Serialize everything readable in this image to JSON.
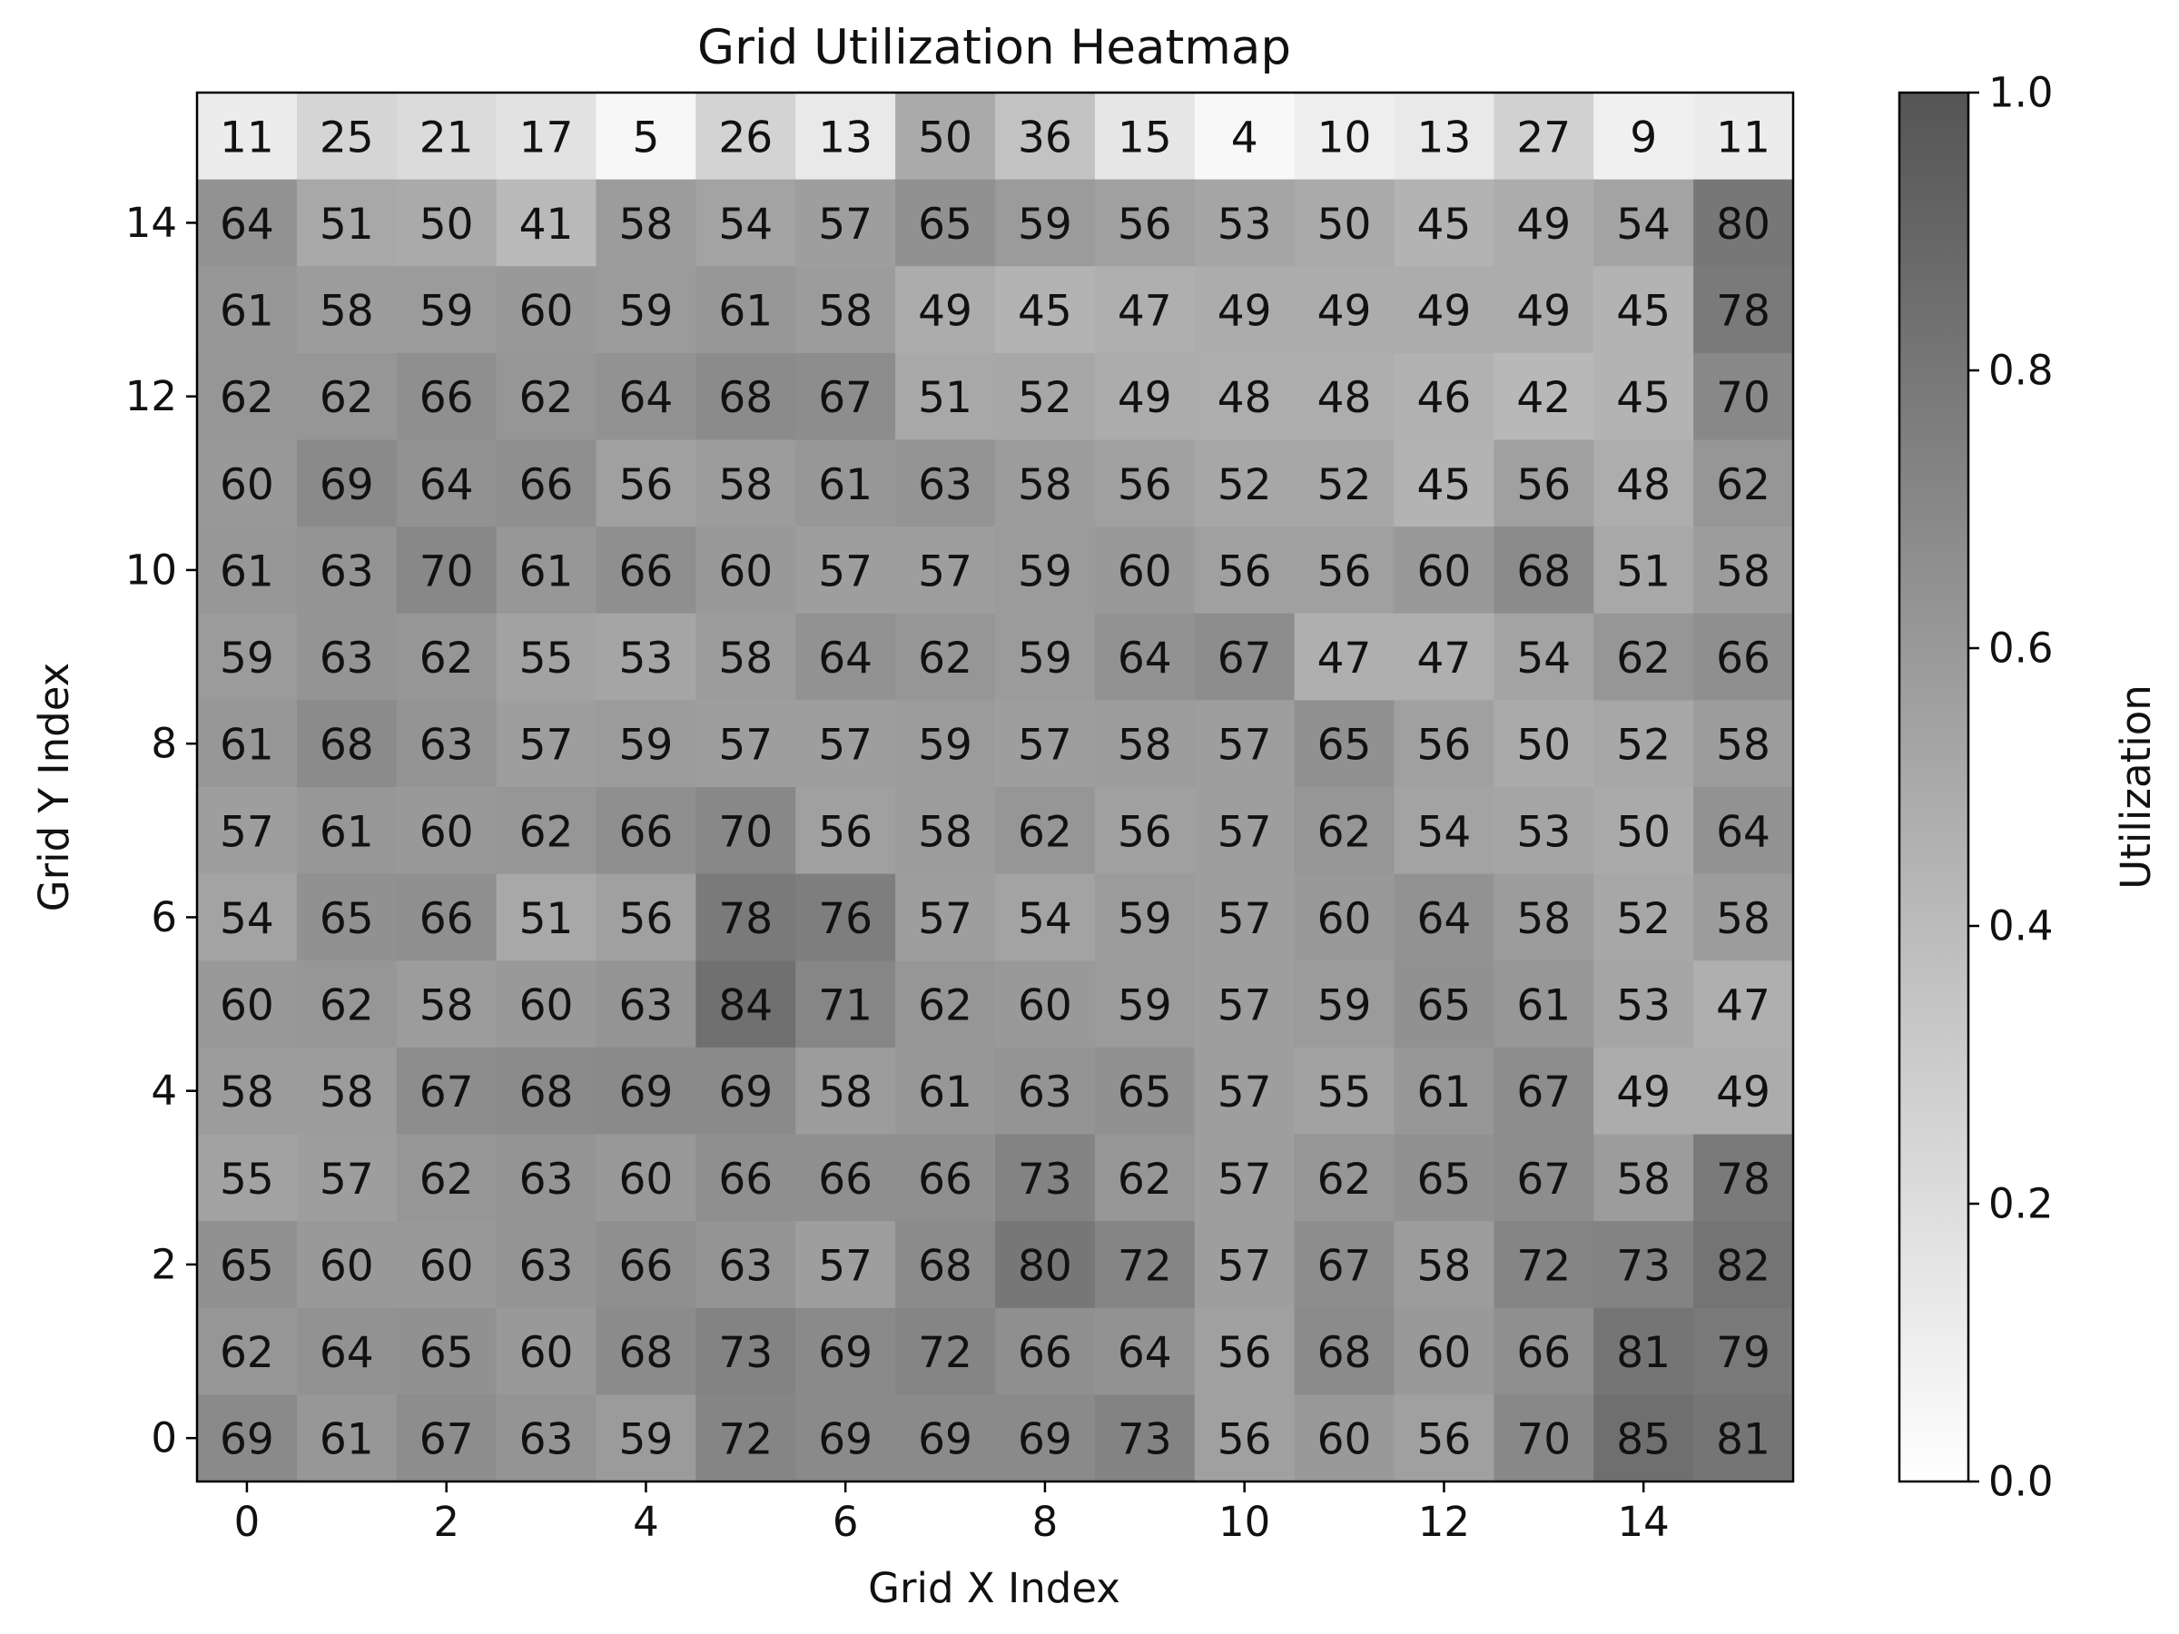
{
  "chart_data": {
    "type": "heatmap",
    "title": "Grid Utilization Heatmap",
    "xlabel": "Grid X Index",
    "ylabel": "Grid Y Index",
    "colorbar_label": "Utilization",
    "colormap": "Greys",
    "color_low": "#ffffff",
    "color_high": "#555555",
    "vmin": 0.0,
    "vmax": 1.0,
    "x_ticks": [
      "0",
      "2",
      "4",
      "6",
      "8",
      "10",
      "12",
      "14"
    ],
    "y_ticks": [
      "0",
      "2",
      "4",
      "6",
      "8",
      "10",
      "12",
      "14"
    ],
    "colorbar_ticks": [
      "0.0",
      "0.2",
      "0.4",
      "0.6",
      "0.8",
      "1.0"
    ],
    "x_range": [
      -0.5,
      15.5
    ],
    "y_range": [
      -0.5,
      15.5
    ],
    "rows_top_to_bottom": [
      [
        11,
        25,
        21,
        17,
        5,
        26,
        13,
        50,
        36,
        15,
        4,
        10,
        13,
        27,
        9,
        11
      ],
      [
        64,
        51,
        50,
        41,
        58,
        54,
        57,
        65,
        59,
        56,
        53,
        50,
        45,
        49,
        54,
        80
      ],
      [
        61,
        58,
        59,
        60,
        59,
        61,
        58,
        49,
        45,
        47,
        49,
        49,
        49,
        49,
        45,
        78
      ],
      [
        62,
        62,
        66,
        62,
        64,
        68,
        67,
        51,
        52,
        49,
        48,
        48,
        46,
        42,
        45,
        70
      ],
      [
        60,
        69,
        64,
        66,
        56,
        58,
        61,
        63,
        58,
        56,
        52,
        52,
        45,
        56,
        48,
        62
      ],
      [
        61,
        63,
        70,
        61,
        66,
        60,
        57,
        57,
        59,
        60,
        56,
        56,
        60,
        68,
        51,
        58
      ],
      [
        59,
        63,
        62,
        55,
        53,
        58,
        64,
        62,
        59,
        64,
        67,
        47,
        47,
        54,
        62,
        66
      ],
      [
        61,
        68,
        63,
        57,
        59,
        57,
        57,
        59,
        57,
        58,
        57,
        65,
        56,
        50,
        52,
        58
      ],
      [
        57,
        61,
        60,
        62,
        66,
        70,
        56,
        58,
        62,
        56,
        57,
        62,
        54,
        53,
        50,
        64
      ],
      [
        54,
        65,
        66,
        51,
        56,
        78,
        76,
        57,
        54,
        59,
        57,
        60,
        64,
        58,
        52,
        58
      ],
      [
        60,
        62,
        58,
        60,
        63,
        84,
        71,
        62,
        60,
        59,
        57,
        59,
        65,
        61,
        53,
        47
      ],
      [
        58,
        58,
        67,
        68,
        69,
        69,
        58,
        61,
        63,
        65,
        57,
        55,
        61,
        67,
        49,
        49
      ],
      [
        55,
        57,
        62,
        63,
        60,
        66,
        66,
        66,
        73,
        62,
        57,
        62,
        65,
        67,
        58,
        78
      ],
      [
        65,
        60,
        60,
        63,
        66,
        63,
        57,
        68,
        80,
        72,
        57,
        67,
        58,
        72,
        73,
        82
      ],
      [
        62,
        64,
        65,
        60,
        68,
        73,
        69,
        72,
        66,
        64,
        56,
        68,
        60,
        66,
        81,
        79
      ],
      [
        69,
        61,
        67,
        63,
        59,
        72,
        69,
        69,
        69,
        73,
        56,
        60,
        56,
        70,
        85,
        81
      ]
    ],
    "grid": false,
    "legend": "colorbar-right"
  }
}
